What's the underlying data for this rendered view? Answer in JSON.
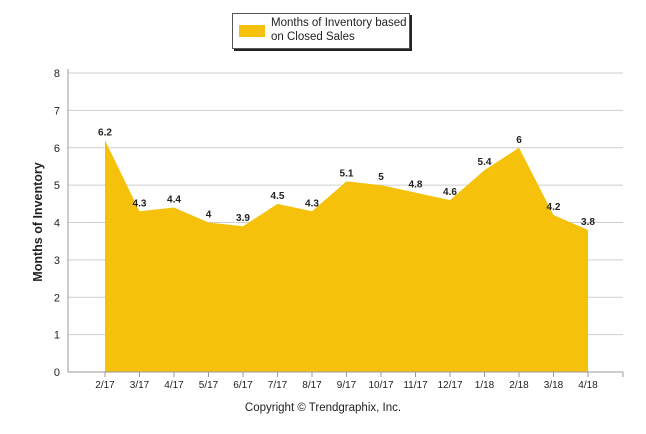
{
  "colors": {
    "fill": "#F6C10B",
    "grid": "#cfcfcf",
    "axis": "#999999",
    "text": "#222222"
  },
  "legend": {
    "label": "Months of Inventory based on Closed Sales"
  },
  "footer": {
    "copyright": "Copyright © Trendgraphix, Inc."
  },
  "chart_data": {
    "type": "area",
    "title": "",
    "xlabel": "",
    "ylabel": "Months of Inventory",
    "ylim": [
      0,
      8
    ],
    "yticks": [
      0,
      1,
      2,
      3,
      4,
      5,
      6,
      7,
      8
    ],
    "grid": true,
    "legend_position": "top-center",
    "categories": [
      "2/17",
      "3/17",
      "4/17",
      "5/17",
      "6/17",
      "7/17",
      "8/17",
      "9/17",
      "10/17",
      "11/17",
      "12/17",
      "1/18",
      "2/18",
      "3/18",
      "4/18"
    ],
    "series": [
      {
        "name": "Months of Inventory based on Closed Sales",
        "values": [
          6.2,
          4.3,
          4.4,
          4,
          3.9,
          4.5,
          4.3,
          5.1,
          5,
          4.8,
          4.6,
          5.4,
          6,
          4.2,
          3.8
        ],
        "labels": [
          "6.2",
          "4.3",
          "4.4",
          "4",
          "3.9",
          "4.5",
          "4.3",
          "5.1",
          "5",
          "4.8",
          "4.6",
          "5.4",
          "6",
          "4.2",
          "3.8"
        ]
      }
    ]
  }
}
